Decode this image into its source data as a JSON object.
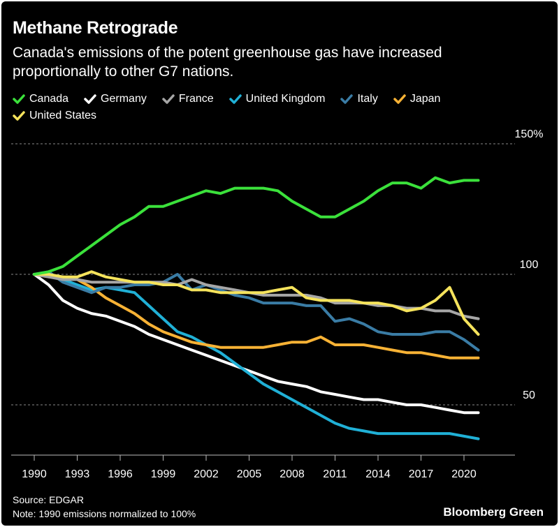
{
  "header": {
    "title": "Methane Retrograde",
    "subtitle": "Canada's emissions of the potent greenhouse gas have increased proportionally to other G7 nations."
  },
  "legend": [
    {
      "name": "Canada",
      "color": "#3be13b"
    },
    {
      "name": "Germany",
      "color": "#ffffff"
    },
    {
      "name": "France",
      "color": "#a6a6a6"
    },
    {
      "name": "United Kingdom",
      "color": "#20b0d6"
    },
    {
      "name": "Italy",
      "color": "#3a7ca5"
    },
    {
      "name": "Japan",
      "color": "#f7b235"
    },
    {
      "name": "United States",
      "color": "#f5e35c"
    }
  ],
  "footer": {
    "source": "Source: EDGAR",
    "note": "Note: 1990 emissions normalized to 100%",
    "brand": "Bloomberg Green"
  },
  "chart_data": {
    "type": "line",
    "title": "Methane Retrograde",
    "xlabel": "",
    "ylabel": "",
    "x": [
      1990,
      1991,
      1992,
      1993,
      1994,
      1995,
      1996,
      1997,
      1998,
      1999,
      2000,
      2001,
      2002,
      2003,
      2004,
      2005,
      2006,
      2007,
      2008,
      2009,
      2010,
      2011,
      2012,
      2013,
      2014,
      2015,
      2016,
      2017,
      2018,
      2019,
      2020,
      2021
    ],
    "xlim": [
      1989,
      2023
    ],
    "ylim": [
      30,
      155
    ],
    "x_ticks": [
      "1990",
      "1993",
      "1996",
      "1999",
      "2002",
      "2005",
      "2008",
      "2011",
      "2014",
      "2017",
      "2020"
    ],
    "y_ticks": [
      {
        "value": 150,
        "label": "150%"
      },
      {
        "value": 100,
        "label": "100"
      },
      {
        "value": 50,
        "label": "50"
      }
    ],
    "grid": "dashed horizontal",
    "series": [
      {
        "name": "Canada",
        "color": "#3be13b",
        "values": [
          100,
          101,
          103,
          107,
          111,
          115,
          119,
          122,
          126,
          126,
          128,
          130,
          132,
          131,
          133,
          133,
          133,
          132,
          128,
          125,
          122,
          122,
          125,
          128,
          132,
          135,
          135,
          133,
          137,
          135,
          136,
          136
        ]
      },
      {
        "name": "Germany",
        "color": "#ffffff",
        "values": [
          100,
          96,
          90,
          87,
          85,
          84,
          82,
          80,
          77,
          75,
          73,
          71,
          69,
          67,
          65,
          63,
          61,
          59,
          58,
          57,
          55,
          54,
          53,
          52,
          52,
          51,
          50,
          50,
          49,
          48,
          47,
          47
        ]
      },
      {
        "name": "France",
        "color": "#a6a6a6",
        "values": [
          100,
          99,
          98,
          98,
          97,
          97,
          97,
          97,
          97,
          97,
          96,
          98,
          96,
          95,
          94,
          93,
          92,
          92,
          92,
          92,
          91,
          89,
          89,
          89,
          88,
          88,
          87,
          87,
          86,
          86,
          84,
          83
        ]
      },
      {
        "name": "United Kingdom",
        "color": "#20b0d6",
        "values": [
          100,
          100,
          98,
          96,
          94,
          95,
          94,
          93,
          88,
          83,
          78,
          76,
          73,
          70,
          66,
          62,
          58,
          55,
          52,
          49,
          46,
          43,
          41,
          40,
          39,
          39,
          39,
          39,
          39,
          39,
          38,
          37
        ]
      },
      {
        "name": "Italy",
        "color": "#3a7ca5",
        "values": [
          100,
          101,
          97,
          95,
          93,
          95,
          95,
          96,
          96,
          97,
          100,
          94,
          96,
          94,
          92,
          91,
          89,
          89,
          89,
          88,
          88,
          82,
          83,
          81,
          78,
          77,
          77,
          77,
          78,
          78,
          75,
          71
        ]
      },
      {
        "name": "Japan",
        "color": "#f7b235",
        "values": [
          100,
          99,
          99,
          98,
          95,
          91,
          88,
          85,
          81,
          78,
          76,
          74,
          73,
          72,
          72,
          72,
          72,
          73,
          74,
          74,
          76,
          73,
          73,
          73,
          72,
          71,
          70,
          70,
          69,
          68,
          68,
          68
        ]
      },
      {
        "name": "United States",
        "color": "#f5e35c",
        "values": [
          100,
          100,
          99,
          99,
          101,
          99,
          98,
          97,
          97,
          96,
          96,
          94,
          94,
          93,
          93,
          93,
          93,
          94,
          95,
          91,
          90,
          90,
          90,
          89,
          89,
          88,
          86,
          87,
          90,
          95,
          83,
          77
        ]
      }
    ]
  }
}
